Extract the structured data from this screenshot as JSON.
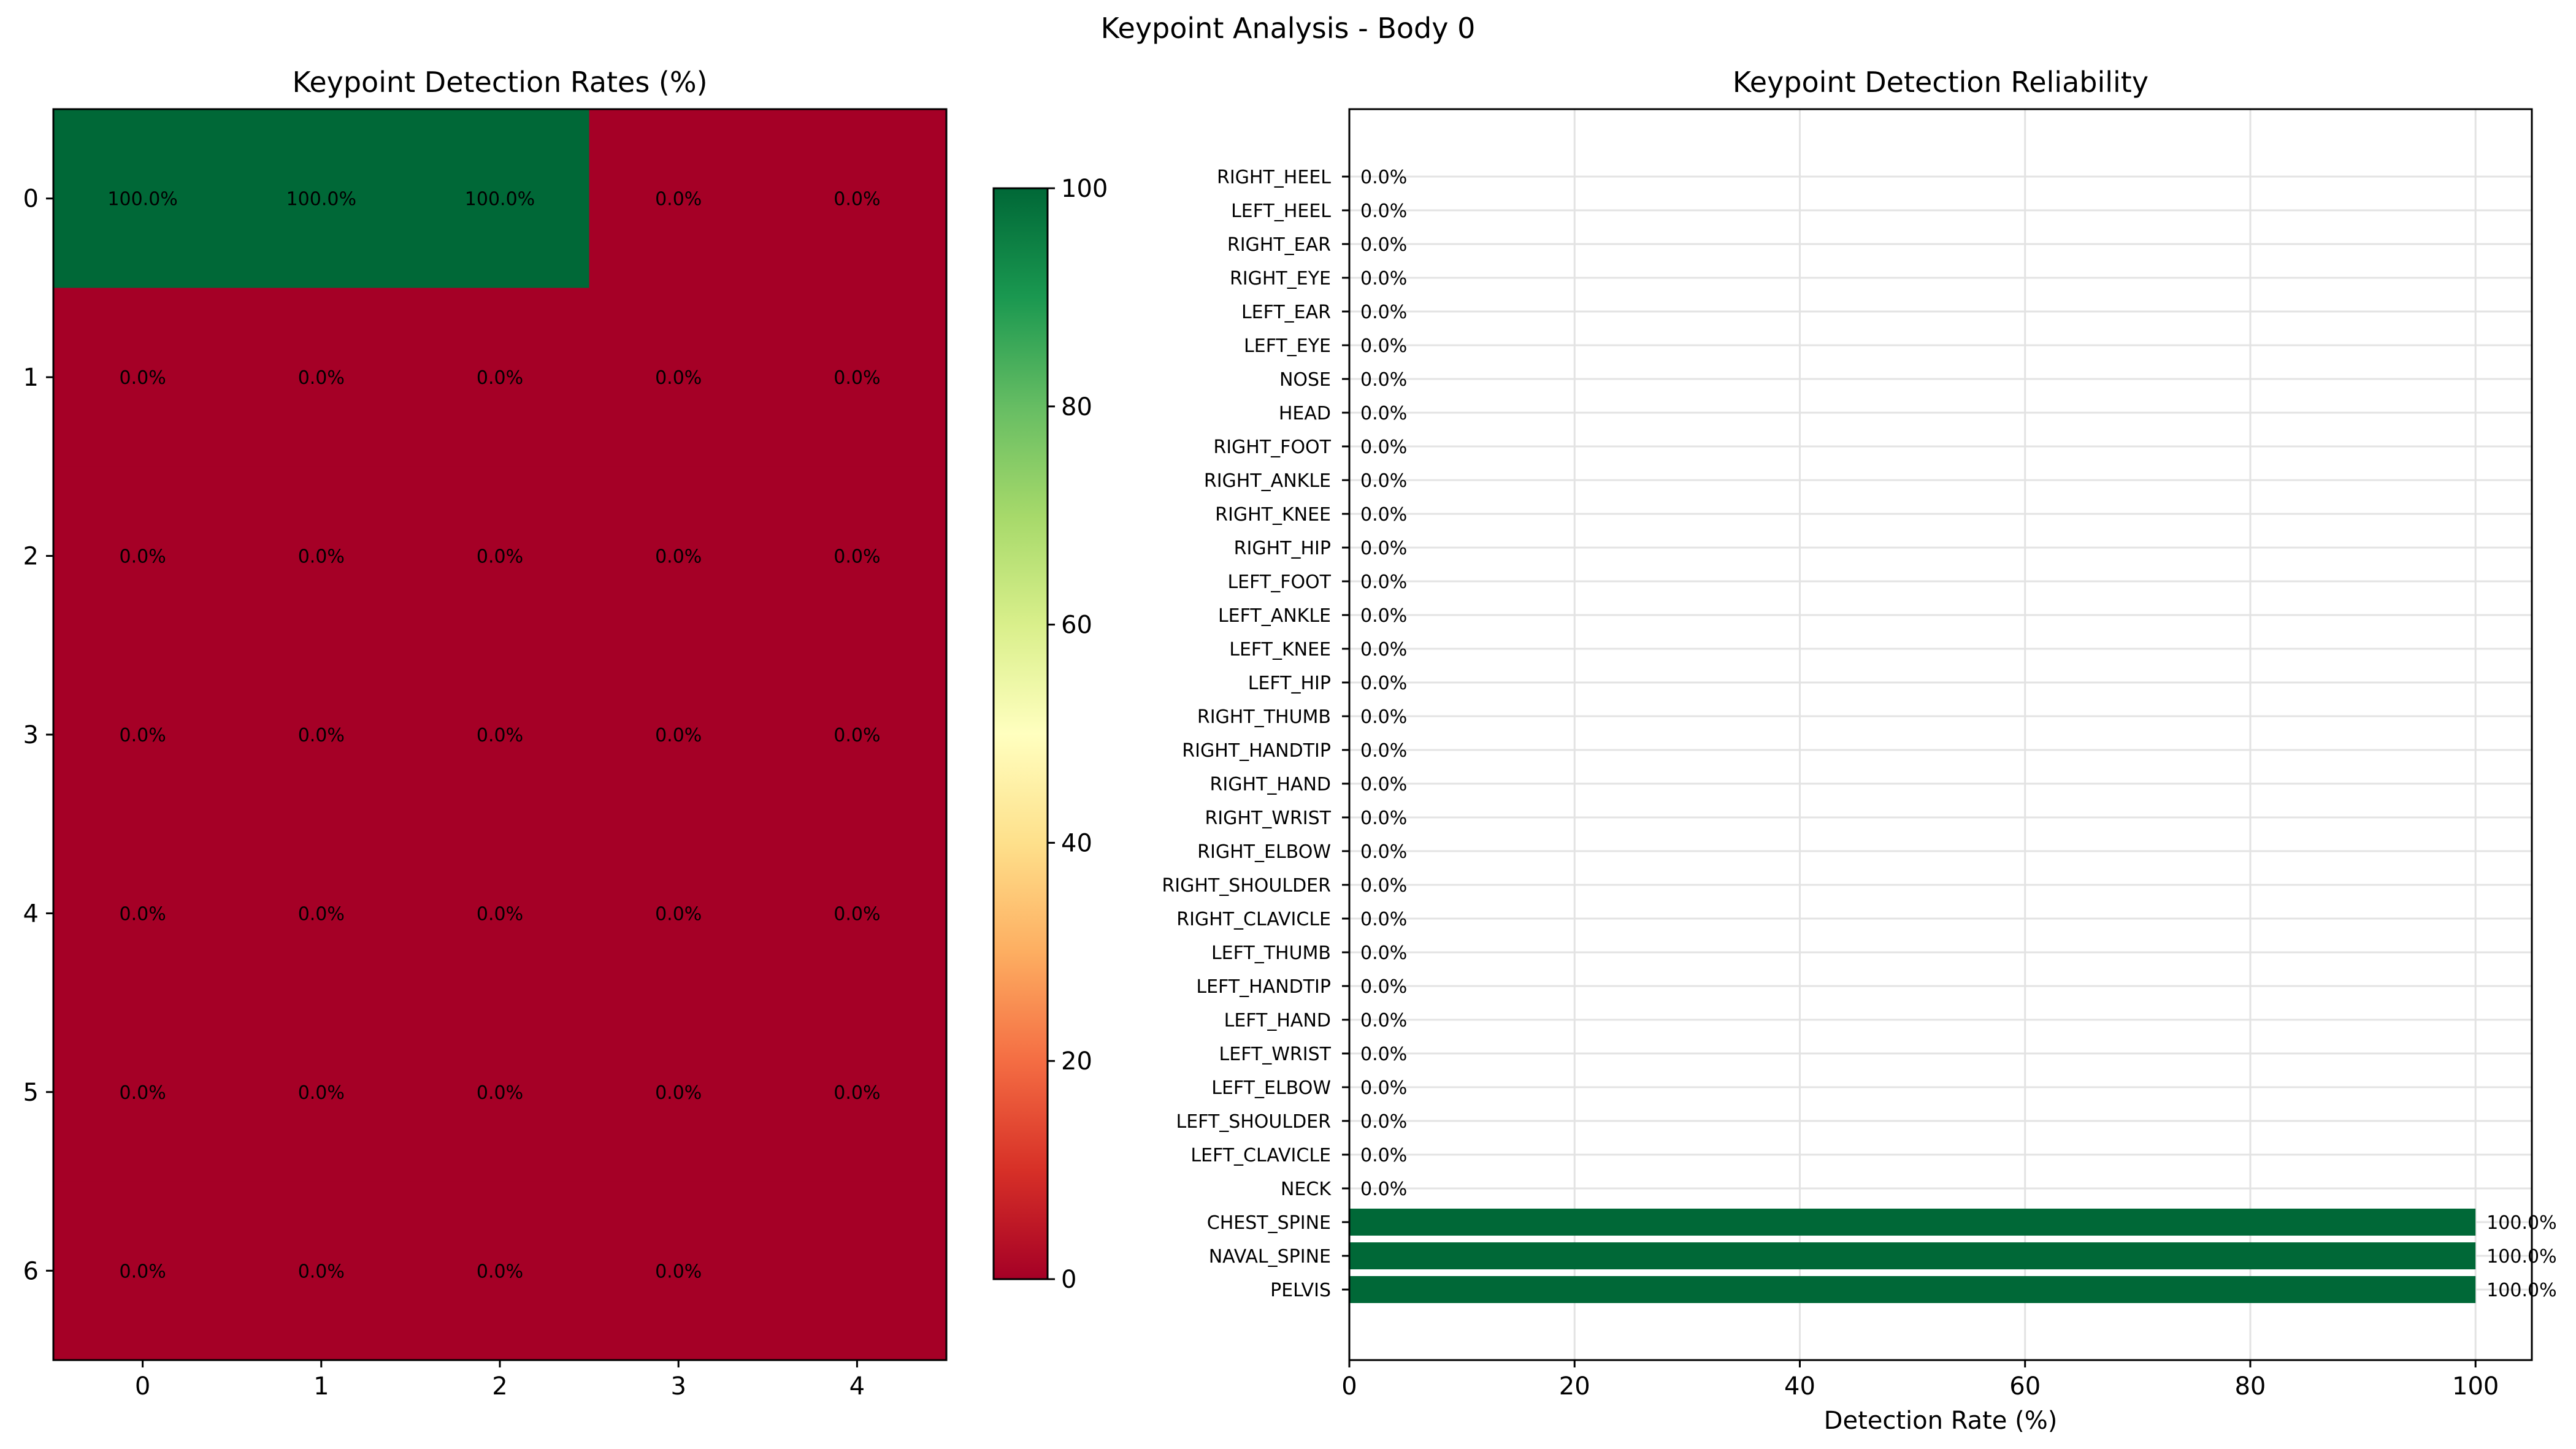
{
  "figure": {
    "title": "Keypoint Analysis - Body 0"
  },
  "chart_data": [
    {
      "type": "heatmap",
      "title": "Keypoint Detection Rates (%)",
      "rows": [
        0,
        1,
        2,
        3,
        4,
        5,
        6
      ],
      "cols": [
        0,
        1,
        2,
        3,
        4
      ],
      "values": [
        [
          100,
          100,
          100,
          0,
          0
        ],
        [
          0,
          0,
          0,
          0,
          0
        ],
        [
          0,
          0,
          0,
          0,
          0
        ],
        [
          0,
          0,
          0,
          0,
          0
        ],
        [
          0,
          0,
          0,
          0,
          0
        ],
        [
          0,
          0,
          0,
          0,
          0
        ],
        [
          0,
          0,
          0,
          0,
          null
        ]
      ],
      "cell_labels": [
        [
          "100.0%",
          "100.0%",
          "100.0%",
          "0.0%",
          "0.0%"
        ],
        [
          "0.0%",
          "0.0%",
          "0.0%",
          "0.0%",
          "0.0%"
        ],
        [
          "0.0%",
          "0.0%",
          "0.0%",
          "0.0%",
          "0.0%"
        ],
        [
          "0.0%",
          "0.0%",
          "0.0%",
          "0.0%",
          "0.0%"
        ],
        [
          "0.0%",
          "0.0%",
          "0.0%",
          "0.0%",
          "0.0%"
        ],
        [
          "0.0%",
          "0.0%",
          "0.0%",
          "0.0%",
          "0.0%"
        ],
        [
          "0.0%",
          "0.0%",
          "0.0%",
          "0.0%",
          ""
        ]
      ],
      "colorscale": "RdYlGn",
      "colorbar": {
        "range": [
          0,
          100
        ],
        "ticks": [
          "0",
          "20",
          "40",
          "60",
          "80",
          "100"
        ]
      }
    },
    {
      "type": "bar",
      "orientation": "horizontal",
      "title": "Keypoint Detection Reliability",
      "xlabel": "Detection Rate (%)",
      "xlim": [
        0,
        105
      ],
      "xticks": [
        "0",
        "20",
        "40",
        "60",
        "80",
        "100"
      ],
      "grid": true,
      "categories": [
        "PELVIS",
        "NAVAL_SPINE",
        "CHEST_SPINE",
        "NECK",
        "LEFT_CLAVICLE",
        "LEFT_SHOULDER",
        "LEFT_ELBOW",
        "LEFT_WRIST",
        "LEFT_HAND",
        "LEFT_HANDTIP",
        "LEFT_THUMB",
        "RIGHT_CLAVICLE",
        "RIGHT_SHOULDER",
        "RIGHT_ELBOW",
        "RIGHT_WRIST",
        "RIGHT_HAND",
        "RIGHT_HANDTIP",
        "RIGHT_THUMB",
        "LEFT_HIP",
        "LEFT_KNEE",
        "LEFT_ANKLE",
        "LEFT_FOOT",
        "RIGHT_HIP",
        "RIGHT_KNEE",
        "RIGHT_ANKLE",
        "RIGHT_FOOT",
        "HEAD",
        "NOSE",
        "LEFT_EYE",
        "LEFT_EAR",
        "RIGHT_EYE",
        "RIGHT_EAR",
        "LEFT_HEEL",
        "RIGHT_HEEL"
      ],
      "values": [
        100,
        100,
        100,
        0,
        0,
        0,
        0,
        0,
        0,
        0,
        0,
        0,
        0,
        0,
        0,
        0,
        0,
        0,
        0,
        0,
        0,
        0,
        0,
        0,
        0,
        0,
        0,
        0,
        0,
        0,
        0,
        0,
        0,
        0
      ],
      "value_labels": [
        "100.0%",
        "100.0%",
        "100.0%",
        "0.0%",
        "0.0%",
        "0.0%",
        "0.0%",
        "0.0%",
        "0.0%",
        "0.0%",
        "0.0%",
        "0.0%",
        "0.0%",
        "0.0%",
        "0.0%",
        "0.0%",
        "0.0%",
        "0.0%",
        "0.0%",
        "0.0%",
        "0.0%",
        "0.0%",
        "0.0%",
        "0.0%",
        "0.0%",
        "0.0%",
        "0.0%",
        "0.0%",
        "0.0%",
        "0.0%",
        "0.0%",
        "0.0%",
        "0.0%",
        "0.0%"
      ],
      "bar_color": "#006837"
    }
  ]
}
